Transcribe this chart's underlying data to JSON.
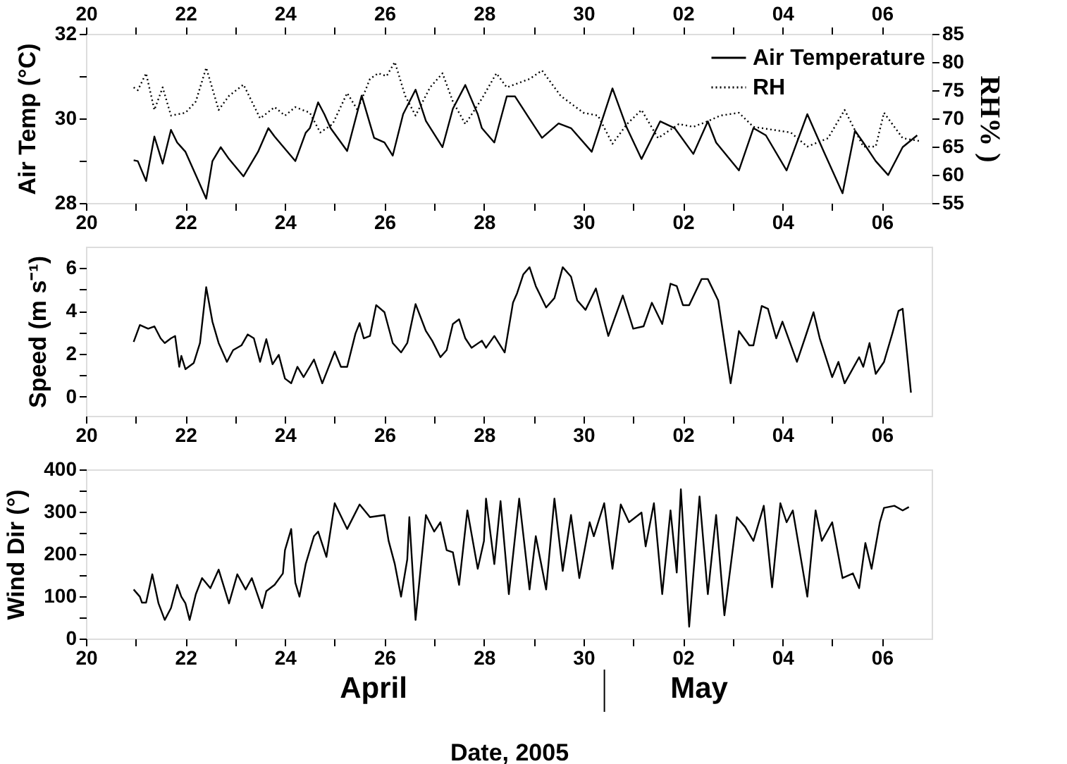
{
  "chart_data": [
    {
      "type": "line",
      "ylabel": "Air Temp (°C)",
      "y2label": "RH% )",
      "legend": "top right",
      "marker": "none",
      "xlim": [
        "2005-04-20",
        "2005-05-07"
      ],
      "x2lim": [
        "2005-04-20",
        "2005-05-07"
      ],
      "xticks": [
        {
          "value": "2005-04-20",
          "label": "20"
        },
        {
          "value": "2005-04-21",
          "label": null
        },
        {
          "value": "2005-04-22",
          "label": "22"
        },
        {
          "value": "2005-04-23",
          "label": null
        },
        {
          "value": "2005-04-24",
          "label": "24"
        },
        {
          "value": "2005-04-25",
          "label": null
        },
        {
          "value": "2005-04-26",
          "label": "26"
        },
        {
          "value": "2005-04-27",
          "label": null
        },
        {
          "value": "2005-04-28",
          "label": "28"
        },
        {
          "value": "2005-04-29",
          "label": null
        },
        {
          "value": "2005-04-30",
          "label": "30"
        },
        {
          "value": "2005-05-01",
          "label": null
        },
        {
          "value": "2005-05-02",
          "label": "02"
        },
        {
          "value": "2005-05-03",
          "label": null
        },
        {
          "value": "2005-05-04",
          "label": "04"
        },
        {
          "value": "2005-05-05",
          "label": null
        },
        {
          "value": "2005-05-06",
          "label": "06"
        }
      ],
      "x2ticks": [
        {
          "value": "2005-04-20",
          "label": "20"
        },
        {
          "value": "2005-04-21",
          "label": null
        },
        {
          "value": "2005-04-22",
          "label": "22"
        },
        {
          "value": "2005-04-23",
          "label": null
        },
        {
          "value": "2005-04-24",
          "label": "24"
        },
        {
          "value": "2005-04-25",
          "label": null
        },
        {
          "value": "2005-04-26",
          "label": "26"
        },
        {
          "value": "2005-04-27",
          "label": null
        },
        {
          "value": "2005-04-28",
          "label": "28"
        },
        {
          "value": "2005-04-29",
          "label": null
        },
        {
          "value": "2005-04-30",
          "label": "30"
        },
        {
          "value": "2005-05-01",
          "label": null
        },
        {
          "value": "2005-05-02",
          "label": "02"
        },
        {
          "value": "2005-05-03",
          "label": null
        },
        {
          "value": "2005-05-04",
          "label": "04"
        },
        {
          "value": "2005-05-05",
          "label": null
        },
        {
          "value": "2005-05-06",
          "label": "06"
        }
      ],
      "ylim": [
        28,
        32
      ],
      "yticks": [
        28,
        {
          "value": 29,
          "label": null
        },
        30,
        {
          "value": 31,
          "label": null
        },
        32
      ],
      "y2lim": [
        55,
        85
      ],
      "y2ticks": [
        55,
        60,
        65,
        70,
        75,
        80,
        85
      ],
      "series": [
        {
          "name": "Air Temperature",
          "color": "#000000",
          "line_style": "solid",
          "x": [
            "2005-04-20T23:00",
            "2005-04-21T01:00",
            "2005-04-21T05:00",
            "2005-04-21T09:00",
            "2005-04-21T13:00",
            "2005-04-21T17:00",
            "2005-04-21T20:00",
            "2005-04-22T00:00",
            "2005-04-22T05:00",
            "2005-04-22T10:00",
            "2005-04-22T13:00",
            "2005-04-22T17:00",
            "2005-04-22T21:00",
            "2005-04-23T04:00",
            "2005-04-23T11:00",
            "2005-04-23T16:00",
            "2005-04-23T19:00",
            "2005-04-24T05:00",
            "2005-04-24T10:00",
            "2005-04-24T12:00",
            "2005-04-24T16:00",
            "2005-04-24T19:00",
            "2005-04-24T22:00",
            "2005-04-25T06:00",
            "2005-04-25T13:00",
            "2005-04-25T19:00",
            "2005-04-26T00:00",
            "2005-04-26T04:00",
            "2005-04-26T09:00",
            "2005-04-26T15:00",
            "2005-04-26T20:00",
            "2005-04-27T04:00",
            "2005-04-27T09:00",
            "2005-04-27T15:00",
            "2005-04-27T21:00",
            "2005-04-27T23:00",
            "2005-04-28T05:00",
            "2005-04-28T11:00",
            "2005-04-28T15:00",
            "2005-04-28T22:00",
            "2005-04-29T04:00",
            "2005-04-29T12:00",
            "2005-04-29T18:00",
            "2005-04-30T04:00",
            "2005-04-30T14:00",
            "2005-04-30T21:00",
            "2005-05-01T04:00",
            "2005-05-01T13:00",
            "2005-05-01T20:00",
            "2005-05-02T05:00",
            "2005-05-02T12:00",
            "2005-05-02T16:00",
            "2005-05-03T03:00",
            "2005-05-03T10:00",
            "2005-05-03T16:00",
            "2005-05-04T02:00",
            "2005-05-04T12:00",
            "2005-05-04T20:00",
            "2005-05-05T05:00",
            "2005-05-05T11:00",
            "2005-05-05T15:00",
            "2005-05-05T21:00",
            "2005-05-06T03:00",
            "2005-05-06T10:00",
            "2005-05-06T17:00"
          ],
          "values": [
            29.01,
            28.99,
            28.52,
            29.57,
            28.93,
            29.73,
            29.43,
            29.21,
            28.66,
            28.1,
            28.99,
            29.32,
            29.04,
            28.63,
            29.21,
            29.77,
            29.57,
            28.99,
            29.66,
            29.77,
            30.38,
            30.1,
            29.77,
            29.23,
            30.54,
            29.54,
            29.43,
            29.12,
            30.1,
            30.68,
            29.94,
            29.32,
            30.23,
            30.79,
            30.1,
            29.77,
            29.43,
            30.52,
            30.52,
            29.99,
            29.54,
            29.88,
            29.77,
            29.21,
            30.71,
            29.77,
            29.04,
            29.93,
            29.77,
            29.16,
            29.93,
            29.43,
            28.77,
            29.77,
            29.6,
            28.77,
            30.1,
            29.21,
            28.23,
            29.71,
            29.43,
            28.99,
            28.66,
            29.32,
            29.6
          ]
        },
        {
          "name": "RH",
          "color": "#000000",
          "line_style": "dotted",
          "axis": "y2",
          "x": [
            "2005-04-20T23:00",
            "2005-04-21T01:00",
            "2005-04-21T05:00",
            "2005-04-21T09:00",
            "2005-04-21T13:00",
            "2005-04-21T17:00",
            "2005-04-22T00:00",
            "2005-04-22T05:00",
            "2005-04-22T10:00",
            "2005-04-22T16:00",
            "2005-04-22T21:00",
            "2005-04-23T04:00",
            "2005-04-23T12:00",
            "2005-04-23T19:00",
            "2005-04-24T00:00",
            "2005-04-24T05:00",
            "2005-04-24T12:00",
            "2005-04-24T17:00",
            "2005-04-24T23:00",
            "2005-04-25T06:00",
            "2005-04-25T11:00",
            "2005-04-25T17:00",
            "2005-04-25T21:00",
            "2005-04-26T01:00",
            "2005-04-26T05:00",
            "2005-04-26T10:00",
            "2005-04-26T15:00",
            "2005-04-26T22:00",
            "2005-04-27T04:00",
            "2005-04-27T09:00",
            "2005-04-27T15:00",
            "2005-04-27T23:00",
            "2005-04-28T06:00",
            "2005-04-28T11:00",
            "2005-04-28T22:00",
            "2005-04-29T04:00",
            "2005-04-29T13:00",
            "2005-04-30T00:00",
            "2005-04-30T07:00",
            "2005-04-30T14:00",
            "2005-04-30T21:00",
            "2005-05-01T04:00",
            "2005-05-01T12:00",
            "2005-05-01T22:00",
            "2005-05-02T05:00",
            "2005-05-02T12:00",
            "2005-05-02T18:00",
            "2005-05-03T03:00",
            "2005-05-03T10:00",
            "2005-05-03T19:00",
            "2005-05-04T04:00",
            "2005-05-04T12:00",
            "2005-05-04T22:00",
            "2005-05-05T06:00",
            "2005-05-05T15:00",
            "2005-05-05T21:00",
            "2005-05-06T01:00",
            "2005-05-06T10:00",
            "2005-05-06T18:00"
          ],
          "values": [
            75.5,
            75,
            78,
            71.5,
            75.5,
            70.5,
            71,
            73,
            79,
            71.5,
            74,
            76,
            70,
            72,
            70.5,
            72,
            71,
            67.5,
            69,
            74.5,
            71.5,
            77,
            78,
            77.5,
            80,
            74,
            70.5,
            75.5,
            78,
            73,
            69,
            73.5,
            78,
            75.5,
            77,
            78.5,
            74,
            71,
            70.5,
            65.5,
            69,
            71.5,
            66.5,
            69,
            68.5,
            69.5,
            70.5,
            71,
            68.5,
            68,
            67.5,
            65,
            66.5,
            71.5,
            65,
            65,
            71,
            66.5,
            66
          ]
        }
      ]
    },
    {
      "type": "line",
      "ylabel": "Speed (m s⁻¹)",
      "marker": "none",
      "xlim": [
        "2005-04-20",
        "2005-05-07"
      ],
      "xticks": [
        {
          "value": "2005-04-20",
          "label": "20"
        },
        {
          "value": "2005-04-21",
          "label": null
        },
        {
          "value": "2005-04-22",
          "label": "22"
        },
        {
          "value": "2005-04-23",
          "label": null
        },
        {
          "value": "2005-04-24",
          "label": "24"
        },
        {
          "value": "2005-04-25",
          "label": null
        },
        {
          "value": "2005-04-26",
          "label": "26"
        },
        {
          "value": "2005-04-27",
          "label": null
        },
        {
          "value": "2005-04-28",
          "label": "28"
        },
        {
          "value": "2005-04-29",
          "label": null
        },
        {
          "value": "2005-04-30",
          "label": "30"
        },
        {
          "value": "2005-05-01",
          "label": null
        },
        {
          "value": "2005-05-02",
          "label": "02"
        },
        {
          "value": "2005-05-03",
          "label": null
        },
        {
          "value": "2005-05-04",
          "label": "04"
        },
        {
          "value": "2005-05-05",
          "label": null
        },
        {
          "value": "2005-05-06",
          "label": "06"
        }
      ],
      "ylim": [
        -0.9,
        7
      ],
      "yticks": [
        0,
        {
          "value": 1,
          "label": null
        },
        2,
        {
          "value": 3,
          "label": null
        },
        4,
        {
          "value": 5,
          "label": null
        },
        6
      ],
      "series": [
        {
          "color": "#000000",
          "line_style": "solid",
          "x": [
            "2005-04-20T23:00",
            "2005-04-21T02:00",
            "2005-04-21T06:00",
            "2005-04-21T09:00",
            "2005-04-21T12:00",
            "2005-04-21T14:00",
            "2005-04-21T17:00",
            "2005-04-21T19:00",
            "2005-04-21T21:00",
            "2005-04-21T22:00",
            "2005-04-22T00:00",
            "2005-04-22T04:00",
            "2005-04-22T07:00",
            "2005-04-22T10:00",
            "2005-04-22T13:00",
            "2005-04-22T16:00",
            "2005-04-22T20:00",
            "2005-04-22T23:00",
            "2005-04-23T03:00",
            "2005-04-23T06:00",
            "2005-04-23T09:00",
            "2005-04-23T12:00",
            "2005-04-23T15:00",
            "2005-04-23T18:00",
            "2005-04-23T21:00",
            "2005-04-24T00:00",
            "2005-04-24T03:00",
            "2005-04-24T06:00",
            "2005-04-24T09:00",
            "2005-04-24T14:00",
            "2005-04-24T18:00",
            "2005-04-25T00:00",
            "2005-04-25T03:00",
            "2005-04-25T06:00",
            "2005-04-25T10:00",
            "2005-04-25T12:00",
            "2005-04-25T14:00",
            "2005-04-25T17:00",
            "2005-04-25T20:00",
            "2005-04-26T00:00",
            "2005-04-26T04:00",
            "2005-04-26T08:00",
            "2005-04-26T11:00",
            "2005-04-26T15:00",
            "2005-04-26T20:00",
            "2005-04-26T23:00",
            "2005-04-27T03:00",
            "2005-04-27T06:00",
            "2005-04-27T09:00",
            "2005-04-27T12:00",
            "2005-04-27T15:00",
            "2005-04-27T18:00",
            "2005-04-27T23:00",
            "2005-04-28T01:00",
            "2005-04-28T05:00",
            "2005-04-28T10:00",
            "2005-04-28T14:00",
            "2005-04-28T16:00",
            "2005-04-28T19:00",
            "2005-04-28T22:00",
            "2005-04-29T01:00",
            "2005-04-29T06:00",
            "2005-04-29T10:00",
            "2005-04-29T14:00",
            "2005-04-29T18:00",
            "2005-04-29T21:00",
            "2005-04-30T01:00",
            "2005-04-30T06:00",
            "2005-04-30T12:00",
            "2005-04-30T19:00",
            "2005-05-01T00:00",
            "2005-05-01T05:00",
            "2005-05-01T09:00",
            "2005-05-01T14:00",
            "2005-05-01T18:00",
            "2005-05-01T21:00",
            "2005-05-02T00:00",
            "2005-05-02T03:00",
            "2005-05-02T09:00",
            "2005-05-02T12:00",
            "2005-05-02T17:00",
            "2005-05-02T23:00",
            "2005-05-03T03:00",
            "2005-05-03T08:00",
            "2005-05-03T10:00",
            "2005-05-03T14:00",
            "2005-05-03T17:00",
            "2005-05-03T21:00",
            "2005-05-04T00:00",
            "2005-05-04T07:00",
            "2005-05-04T11:00",
            "2005-05-04T15:00",
            "2005-05-04T18:00",
            "2005-05-05T00:00",
            "2005-05-05T03:00",
            "2005-05-05T06:00",
            "2005-05-05T13:00",
            "2005-05-05T15:00",
            "2005-05-05T18:00",
            "2005-05-05T21:00",
            "2005-05-06T01:00",
            "2005-05-06T05:00",
            "2005-05-06T08:00",
            "2005-05-06T10:00",
            "2005-05-06T14:00"
          ],
          "values": [
            2.55,
            3.34,
            3.17,
            3.28,
            2.72,
            2.5,
            2.72,
            2.83,
            1.39,
            1.9,
            1.28,
            1.57,
            2.5,
            5.11,
            3.5,
            2.5,
            1.62,
            2.17,
            2.39,
            2.9,
            2.72,
            1.62,
            2.68,
            1.51,
            1.95,
            0.84,
            0.62,
            1.39,
            0.91,
            1.73,
            0.62,
            2.1,
            1.39,
            1.39,
            2.94,
            3.43,
            2.72,
            2.83,
            4.27,
            3.94,
            2.5,
            2.06,
            2.5,
            4.32,
            3.06,
            2.61,
            1.84,
            2.17,
            3.39,
            3.61,
            2.72,
            2.28,
            2.61,
            2.28,
            2.83,
            2.06,
            4.38,
            4.83,
            5.71,
            6.04,
            5.16,
            4.16,
            4.6,
            6.04,
            5.6,
            4.49,
            4.05,
            5.05,
            2.83,
            4.72,
            3.17,
            3.28,
            4.38,
            3.39,
            5.27,
            5.16,
            4.27,
            4.27,
            5.49,
            5.49,
            4.49,
            0.62,
            3.06,
            2.39,
            2.39,
            4.23,
            4.1,
            2.72,
            3.5,
            1.62,
            2.77,
            3.94,
            2.72,
            0.91,
            1.62,
            0.62,
            1.84,
            1.39,
            2.5,
            1.06,
            1.62,
            2.94,
            4.0,
            4.1,
            0.18
          ]
        }
      ]
    },
    {
      "type": "line",
      "ylabel": "Wind Dir (°)",
      "xlabel": "Date, 2005",
      "marker": "none",
      "xlim": [
        "2005-04-20",
        "2005-05-07"
      ],
      "xticks": [
        {
          "value": "2005-04-20",
          "label": "20"
        },
        {
          "value": "2005-04-21",
          "label": null
        },
        {
          "value": "2005-04-22",
          "label": "22"
        },
        {
          "value": "2005-04-23",
          "label": null
        },
        {
          "value": "2005-04-24",
          "label": "24"
        },
        {
          "value": "2005-04-25",
          "label": null
        },
        {
          "value": "2005-04-26",
          "label": "26"
        },
        {
          "value": "2005-04-27",
          "label": null
        },
        {
          "value": "2005-04-28",
          "label": "28"
        },
        {
          "value": "2005-04-29",
          "label": null
        },
        {
          "value": "2005-04-30",
          "label": "30"
        },
        {
          "value": "2005-05-01",
          "label": null
        },
        {
          "value": "2005-05-02",
          "label": "02"
        },
        {
          "value": "2005-05-03",
          "label": null
        },
        {
          "value": "2005-05-04",
          "label": "04"
        },
        {
          "value": "2005-05-05",
          "label": null
        },
        {
          "value": "2005-05-06",
          "label": "06"
        }
      ],
      "ylim": [
        0,
        400
      ],
      "yticks": [
        0,
        {
          "value": 50,
          "label": null
        },
        100,
        {
          "value": 150,
          "label": null
        },
        200,
        {
          "value": 250,
          "label": null
        },
        300,
        {
          "value": 350,
          "label": null
        },
        400
      ],
      "annotations": [
        "April",
        "May"
      ],
      "series": [
        {
          "color": "#000000",
          "line_style": "solid",
          "x": [
            "2005-04-20T23:00",
            "2005-04-21T02:00",
            "2005-04-21T03:00",
            "2005-04-21T05:00",
            "2005-04-21T08:00",
            "2005-04-21T11:00",
            "2005-04-21T14:00",
            "2005-04-21T17:00",
            "2005-04-21T20:00",
            "2005-04-21T22:00",
            "2005-04-22T00:00",
            "2005-04-22T02:00",
            "2005-04-22T05:00",
            "2005-04-22T08:00",
            "2005-04-22T12:00",
            "2005-04-22T16:00",
            "2005-04-22T21:00",
            "2005-04-23T01:00",
            "2005-04-23T05:00",
            "2005-04-23T08:00",
            "2005-04-23T13:00",
            "2005-04-23T15:00",
            "2005-04-23T19:00",
            "2005-04-23T23:00",
            "2005-04-24T00:00",
            "2005-04-24T03:00",
            "2005-04-24T05:00",
            "2005-04-24T07:00",
            "2005-04-24T10:00",
            "2005-04-24T14:00",
            "2005-04-24T16:00",
            "2005-04-24T20:00",
            "2005-04-25T00:00",
            "2005-04-25T06:00",
            "2005-04-25T12:00",
            "2005-04-25T17:00",
            "2005-04-26T00:00",
            "2005-04-26T02:00",
            "2005-04-26T05:00",
            "2005-04-26T08:00",
            "2005-04-26T11:00",
            "2005-04-26T12:00",
            "2005-04-26T15:00",
            "2005-04-26T20:00",
            "2005-04-27T00:00",
            "2005-04-27T03:00",
            "2005-04-27T06:00",
            "2005-04-27T09:00",
            "2005-04-27T12:00",
            "2005-04-27T16:00",
            "2005-04-27T21:00",
            "2005-04-28T00:00",
            "2005-04-28T01:00",
            "2005-04-28T05:00",
            "2005-04-28T08:00",
            "2005-04-28T12:00",
            "2005-04-28T17:00",
            "2005-04-28T22:00",
            "2005-04-29T01:00",
            "2005-04-29T06:00",
            "2005-04-29T10:00",
            "2005-04-29T14:00",
            "2005-04-29T18:00",
            "2005-04-29T22:00",
            "2005-04-30T03:00",
            "2005-04-30T05:00",
            "2005-04-30T10:00",
            "2005-04-30T14:00",
            "2005-04-30T18:00",
            "2005-04-30T22:00",
            "2005-05-01T04:00",
            "2005-05-01T06:00",
            "2005-05-01T10:00",
            "2005-05-01T14:00",
            "2005-05-01T18:00",
            "2005-05-01T21:00",
            "2005-05-01T23:00",
            "2005-05-02T03:00",
            "2005-05-02T08:00",
            "2005-05-02T12:00",
            "2005-05-02T16:00",
            "2005-05-02T20:00",
            "2005-05-03T02:00",
            "2005-05-03T06:00",
            "2005-05-03T10:00",
            "2005-05-03T15:00",
            "2005-05-03T19:00",
            "2005-05-03T23:00",
            "2005-05-04T02:00",
            "2005-05-04T05:00",
            "2005-05-04T12:00",
            "2005-05-04T16:00",
            "2005-05-04T19:00",
            "2005-05-05T00:00",
            "2005-05-05T05:00",
            "2005-05-05T10:00",
            "2005-05-05T13:00",
            "2005-05-05T16:00",
            "2005-05-05T19:00",
            "2005-05-05T23:00",
            "2005-05-06T01:00",
            "2005-05-06T06:00",
            "2005-05-06T10:00",
            "2005-05-06T13:00"
          ],
          "values": [
            116,
            99,
            85,
            85,
            152,
            83,
            44,
            72,
            127,
            99,
            83,
            44,
            105,
            143,
            119,
            163,
            83,
            152,
            116,
            143,
            72,
            112,
            127,
            154,
            209,
            259,
            132,
            99,
            176,
            242,
            253,
            193,
            320,
            259,
            317,
            287,
            292,
            231,
            176,
            99,
            187,
            287,
            44,
            292,
            253,
            275,
            209,
            204,
            127,
            303,
            165,
            231,
            331,
            176,
            325,
            105,
            331,
            116,
            242,
            116,
            331,
            160,
            292,
            143,
            275,
            242,
            320,
            165,
            317,
            275,
            298,
            218,
            320,
            105,
            303,
            156,
            353,
            28,
            336,
            105,
            292,
            55,
            287,
            264,
            231,
            314,
            121,
            320,
            275,
            303,
            99,
            303,
            231,
            275,
            143,
            154,
            119,
            226,
            165,
            275,
            309,
            314,
            303,
            311
          ]
        }
      ]
    }
  ]
}
